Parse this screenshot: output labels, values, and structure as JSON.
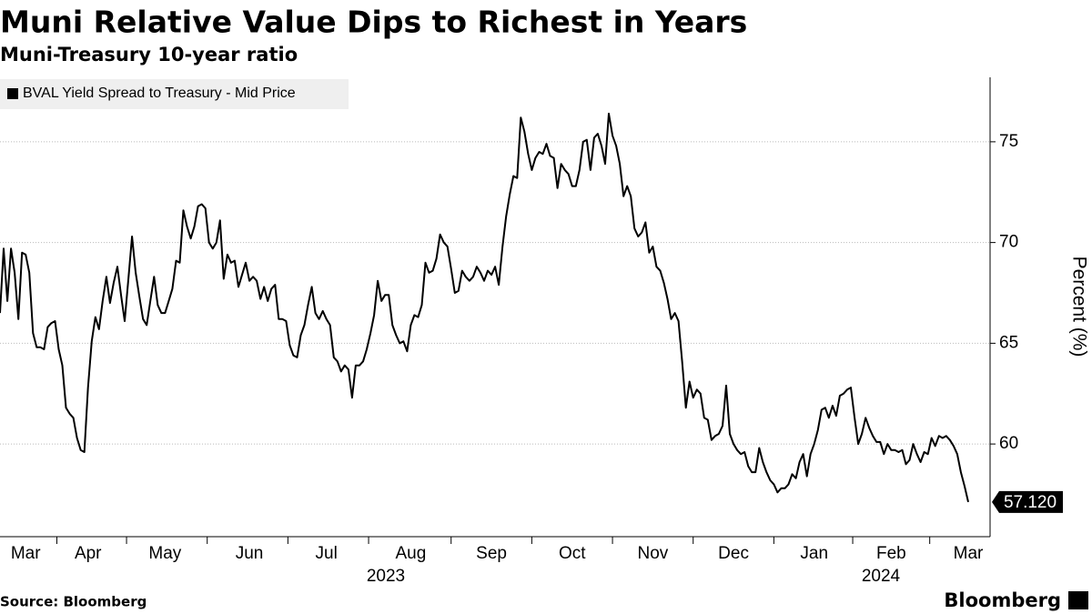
{
  "chart_data": {
    "type": "line",
    "title": "Muni Relative Value Dips to Richest in Years",
    "subtitle": "Muni-Treasury 10-year ratio",
    "y_label": "Percent (%)",
    "categories": [
      null,
      null,
      null,
      null,
      null,
      null,
      null,
      "Mar",
      null,
      null,
      null,
      null,
      null,
      null,
      null,
      null,
      null,
      null,
      null,
      null,
      null,
      null,
      null,
      null,
      "Apr",
      null,
      null,
      null,
      null,
      null,
      null,
      null,
      null,
      null,
      null,
      null,
      null,
      null,
      null,
      null,
      null,
      null,
      null,
      null,
      null,
      "May",
      null,
      null,
      null,
      null,
      null,
      null,
      null,
      null,
      null,
      null,
      null,
      null,
      null,
      null,
      null,
      null,
      null,
      null,
      null,
      null,
      null,
      null,
      "Jun",
      null,
      null,
      null,
      null,
      null,
      null,
      null,
      null,
      null,
      null,
      null,
      null,
      null,
      null,
      null,
      null,
      null,
      null,
      null,
      null,
      "Jul",
      null,
      null,
      null,
      null,
      null,
      null,
      null,
      null,
      null,
      null,
      null,
      null,
      null,
      null,
      null,
      null,
      null,
      null,
      null,
      null,
      null,
      null,
      "Aug",
      null,
      null,
      null,
      null,
      null,
      null,
      null,
      null,
      null,
      null,
      null,
      null,
      null,
      null,
      null,
      null,
      null,
      null,
      null,
      null,
      null,
      "Sep",
      null,
      null,
      null,
      null,
      null,
      null,
      null,
      null,
      null,
      null,
      null,
      null,
      null,
      null,
      null,
      null,
      null,
      null,
      null,
      null,
      null,
      "Oct",
      null,
      null,
      null,
      null,
      null,
      null,
      null,
      null,
      null,
      null,
      null,
      null,
      null,
      null,
      null,
      null,
      null,
      null,
      null,
      null,
      null,
      "Nov",
      null,
      null,
      null,
      null,
      null,
      null,
      null,
      null,
      null,
      null,
      null,
      null,
      null,
      null,
      null,
      null,
      null,
      null,
      null,
      null,
      null,
      "Dec",
      null,
      null,
      null,
      null,
      null,
      null,
      null,
      null,
      null,
      null,
      null,
      null,
      null,
      null,
      null,
      null,
      null,
      null,
      null,
      null,
      null,
      "Jan",
      null,
      null,
      null,
      null,
      null,
      null,
      null,
      null,
      null,
      null,
      null,
      null,
      null,
      null,
      null,
      null,
      null,
      null,
      null,
      null,
      "Feb",
      null,
      null,
      null,
      null,
      null,
      null,
      null,
      null,
      null,
      null,
      null,
      null,
      null,
      null,
      null,
      null,
      null,
      null,
      null,
      null,
      "Mar"
    ],
    "year_labels": [
      "2023",
      "2024"
    ],
    "series": [
      {
        "name": "BVAL Yield Spread to Treasury - Mid Price",
        "color": "#000000",
        "values": [
          66.5,
          69.7,
          67.1,
          69.7,
          68.5,
          66.2,
          69.5,
          69.4,
          68.5,
          65.5,
          64.8,
          64.8,
          64.7,
          65.8,
          66.0,
          66.1,
          64.7,
          63.9,
          61.8,
          61.5,
          61.3,
          60.3,
          59.7,
          59.6,
          62.8,
          65.1,
          66.3,
          65.7,
          67.1,
          68.3,
          67.0,
          68.0,
          68.8,
          67.4,
          66.1,
          68.2,
          70.3,
          68.5,
          67.3,
          66.2,
          65.9,
          67.1,
          68.3,
          66.9,
          66.5,
          66.5,
          67.1,
          67.7,
          69.1,
          69.0,
          71.6,
          70.8,
          70.2,
          70.8,
          71.8,
          71.9,
          71.7,
          70.0,
          69.7,
          70.0,
          71.1,
          68.2,
          69.4,
          69.0,
          69.1,
          67.8,
          68.4,
          69.0,
          68.1,
          68.3,
          68.1,
          67.2,
          67.8,
          67.1,
          67.7,
          67.9,
          66.2,
          66.2,
          66.1,
          64.9,
          64.4,
          64.3,
          65.4,
          65.9,
          66.9,
          67.8,
          66.5,
          66.2,
          66.6,
          66.2,
          65.9,
          64.3,
          64.1,
          63.6,
          63.9,
          63.7,
          62.3,
          63.9,
          63.9,
          64.1,
          64.7,
          65.5,
          66.4,
          68.1,
          67.1,
          67.4,
          67.4,
          65.9,
          65.4,
          65.0,
          65.1,
          64.6,
          65.9,
          66.4,
          66.3,
          66.9,
          69.0,
          68.5,
          68.6,
          69.2,
          70.4,
          70.0,
          69.8,
          68.7,
          67.5,
          67.6,
          68.6,
          68.3,
          68.1,
          68.3,
          68.8,
          68.5,
          68.1,
          68.6,
          68.4,
          68.8,
          67.9,
          69.8,
          71.3,
          72.4,
          73.3,
          73.2,
          76.2,
          75.5,
          74.4,
          73.6,
          74.2,
          74.5,
          74.4,
          74.9,
          74.3,
          74.2,
          72.7,
          73.9,
          73.6,
          73.4,
          72.8,
          72.8,
          73.6,
          75.0,
          75.1,
          73.6,
          75.2,
          75.4,
          74.8,
          73.9,
          76.4,
          75.3,
          74.8,
          73.9,
          72.3,
          72.8,
          72.3,
          70.7,
          70.3,
          70.5,
          71.0,
          69.5,
          69.8,
          68.8,
          68.6,
          68.0,
          67.2,
          66.2,
          66.5,
          66.1,
          64.1,
          61.8,
          63.1,
          62.3,
          62.7,
          62.5,
          61.3,
          61.2,
          60.2,
          60.4,
          60.5,
          60.9,
          62.9,
          60.5,
          60.0,
          59.7,
          59.5,
          59.6,
          58.9,
          58.6,
          58.6,
          59.8,
          59.1,
          58.6,
          58.2,
          58.0,
          57.6,
          57.8,
          57.8,
          58.0,
          58.5,
          58.3,
          59.1,
          59.5,
          58.4,
          59.5,
          60.0,
          60.7,
          61.7,
          61.8,
          61.3,
          61.9,
          61.4,
          62.4,
          62.5,
          62.7,
          62.8,
          61.3,
          60.0,
          60.5,
          61.3,
          60.8,
          60.4,
          60.1,
          60.1,
          59.5,
          60.0,
          59.7,
          59.7,
          59.6,
          59.7,
          59.0,
          59.2,
          60.0,
          59.5,
          59.1,
          59.6,
          59.5,
          60.3,
          59.9,
          60.4,
          60.3,
          60.4,
          60.2,
          59.9,
          59.5,
          58.6,
          57.9,
          57.12
        ]
      }
    ],
    "last_value_label": "57.120",
    "ylim": [
      55.4,
      78.2
    ],
    "yticks": [
      60,
      65,
      70,
      75
    ],
    "grid": true
  },
  "footer": {
    "source": "Source: Bloomberg",
    "brand": "Bloomberg"
  }
}
